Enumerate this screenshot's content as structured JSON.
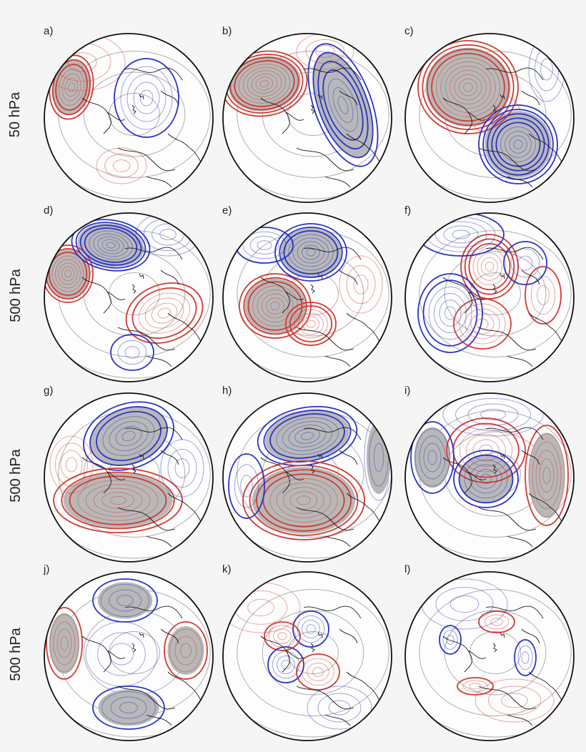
{
  "figure": {
    "rows": [
      {
        "label": "50 hPa",
        "panels": [
          "a)",
          "b)",
          "c)"
        ]
      },
      {
        "label": "500 hPa",
        "panels": [
          "d)",
          "e)",
          "f)"
        ]
      },
      {
        "label": "500 hPa",
        "panels": [
          "g)",
          "h)",
          "i)"
        ]
      },
      {
        "label": "500 hPa",
        "panels": [
          "j)",
          "k)",
          "l)"
        ]
      }
    ],
    "colors": {
      "positive_contour": "#d23a32",
      "negative_contour": "#2a34c8",
      "zero_contour": "#9a9a9a",
      "significance_shading": "#b8b8b8",
      "coastline": "#1a1a1a",
      "background": "#f5f5f5"
    },
    "projection": "polar stereographic, northern hemisphere",
    "plot_elements": [
      "significance-shading",
      "coastlines",
      "anomaly-contours"
    ]
  }
}
